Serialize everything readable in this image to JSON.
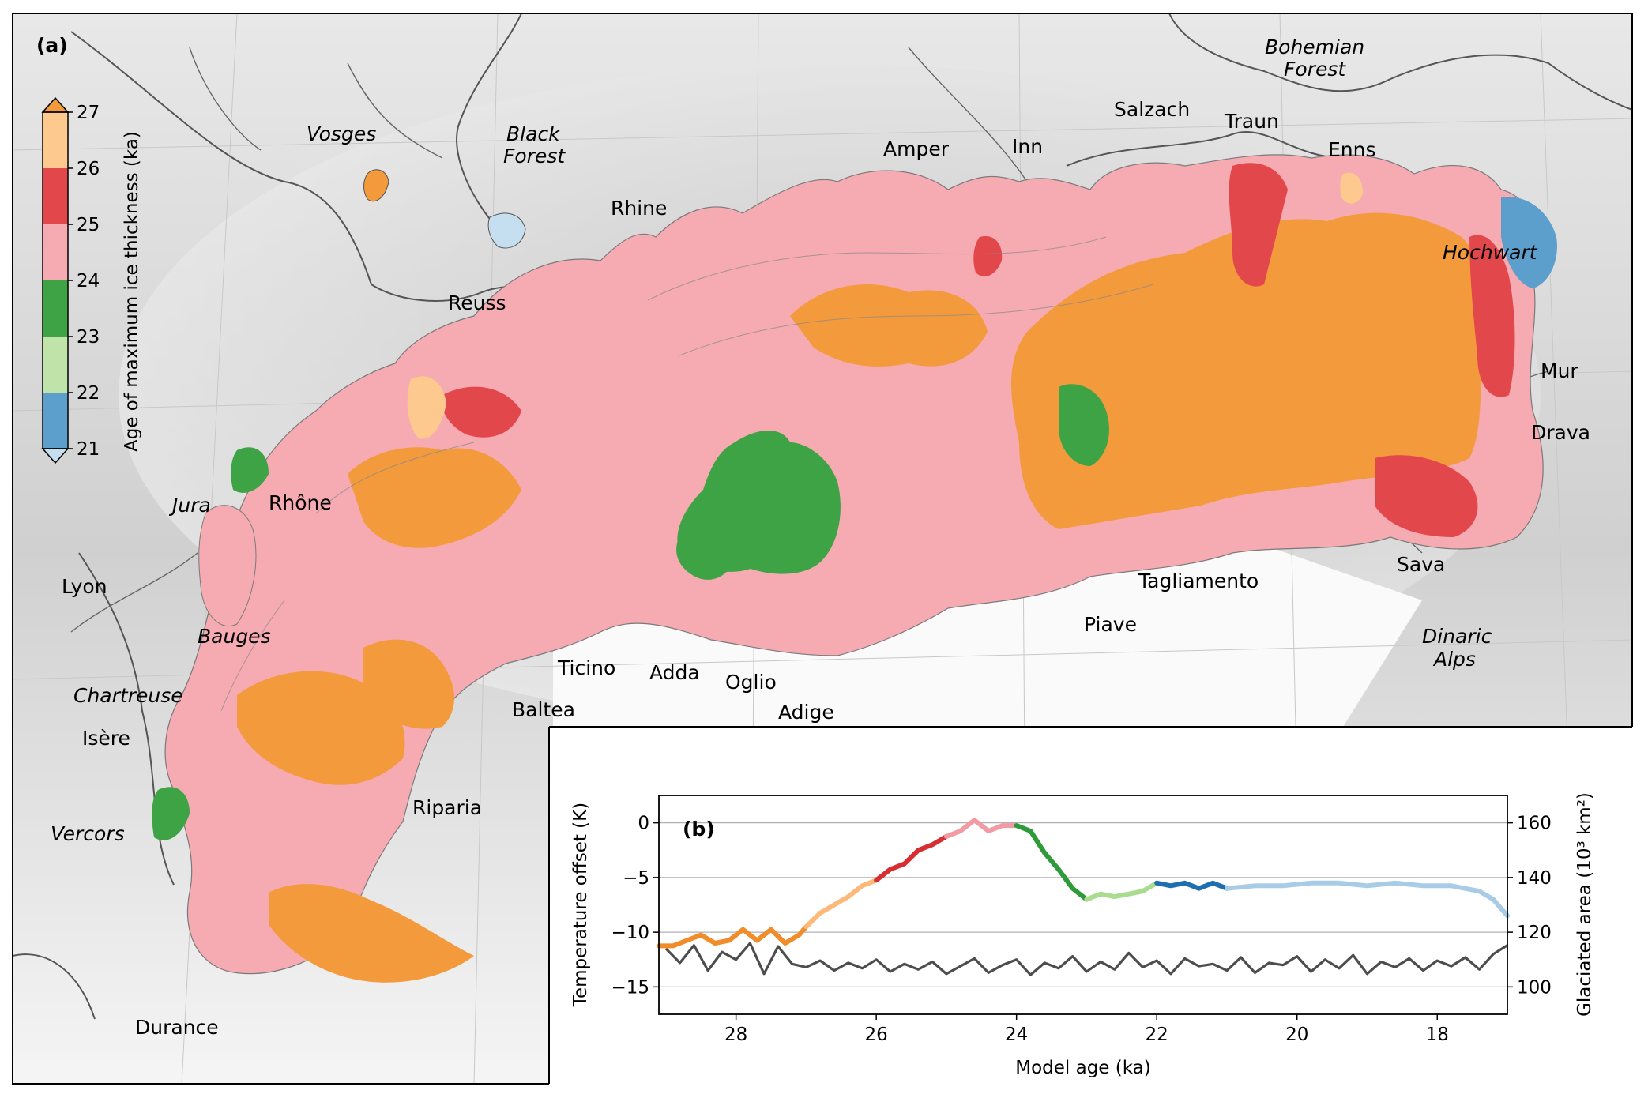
{
  "panel_a": {
    "label": "(a)",
    "colorbar": {
      "title": "Age of maximum ice thickness (ka)",
      "ticks": [
        "27",
        "26",
        "25",
        "24",
        "23",
        "22",
        "21"
      ],
      "bands": [
        {
          "from": 26,
          "to": 27,
          "color": "#fdc98f"
        },
        {
          "from": 25,
          "to": 26,
          "color": "#e2484b"
        },
        {
          "from": 24,
          "to": 25,
          "color": "#f6aab1"
        },
        {
          "from": 23,
          "to": 24,
          "color": "#3ea344"
        },
        {
          "from": 22,
          "to": 23,
          "color": "#bfe3a8"
        },
        {
          "from": 21,
          "to": 22,
          "color": "#5d9fcc"
        }
      ],
      "extend_max_color": "#f39a3c",
      "extend_min_color": "#c6dff0"
    },
    "labels": {
      "vosges": "Vosges",
      "black_forest_1": "Black",
      "black_forest_2": "Forest",
      "rhine": "Rhine",
      "reuss": "Reuss",
      "amper": "Amper",
      "inn": "Inn",
      "salzach": "Salzach",
      "traun": "Traun",
      "enns": "Enns",
      "bohemian_1": "Bohemian",
      "bohemian_2": "Forest",
      "hochwart": "Hochwart",
      "mur": "Mur",
      "drava": "Drava",
      "sava": "Sava",
      "dinaric_1": "Dinaric",
      "dinaric_2": "Alps",
      "tagliamento": "Tagliamento",
      "piave": "Piave",
      "adige": "Adige",
      "oglio": "Oglio",
      "adda": "Adda",
      "ticino": "Ticino",
      "baltea": "Baltea",
      "riparia": "Riparia",
      "jura": "Jura",
      "rhone": "Rhône",
      "lyon": "Lyon",
      "bauges": "Bauges",
      "chartreuse": "Chartreuse",
      "isere": "Isère",
      "vercors": "Vercors",
      "durance": "Durance"
    }
  },
  "chart_data": {
    "type": "line",
    "panel_label": "(b)",
    "xlabel": "Model age (ka)",
    "ylabel_left": "Temperature offset (K)",
    "ylabel_right": "Glaciated area (10³ km²)",
    "x_ticks": [
      "28",
      "26",
      "24",
      "22",
      "20",
      "18"
    ],
    "y_left_ticks": [
      "0",
      "−5",
      "−10",
      "−15"
    ],
    "y_right_ticks": [
      "160",
      "140",
      "120",
      "100"
    ],
    "xlim": [
      29.1,
      17.0
    ],
    "ylim_left": [
      -17.5,
      2.5
    ],
    "ylim_right": [
      90,
      170
    ],
    "grid": "horizontal",
    "series": [
      {
        "axis": "left",
        "color": "#4d4d4d",
        "x": [
          29.0,
          28.8,
          28.6,
          28.4,
          28.2,
          28.0,
          27.8,
          27.6,
          27.4,
          27.2,
          27.0,
          26.8,
          26.6,
          26.4,
          26.2,
          26.0,
          25.8,
          25.6,
          25.4,
          25.2,
          25.0,
          24.8,
          24.6,
          24.4,
          24.2,
          24.0,
          23.8,
          23.6,
          23.4,
          23.2,
          23.0,
          22.8,
          22.6,
          22.4,
          22.2,
          22.0,
          21.8,
          21.6,
          21.4,
          21.2,
          21.0,
          20.8,
          20.6,
          20.4,
          20.2,
          20.0,
          19.8,
          19.6,
          19.4,
          19.2,
          19.0,
          18.8,
          18.6,
          18.4,
          18.2,
          18.0,
          17.8,
          17.6,
          17.4,
          17.2,
          17.0
        ],
        "y": [
          -11.5,
          -12.8,
          -11.2,
          -13.5,
          -11.8,
          -12.5,
          -11.0,
          -13.8,
          -11.3,
          -12.9,
          -13.2,
          -12.6,
          -13.5,
          -12.8,
          -13.3,
          -12.5,
          -13.6,
          -12.9,
          -13.4,
          -12.7,
          -13.8,
          -13.1,
          -12.4,
          -13.7,
          -13.0,
          -12.5,
          -13.9,
          -12.8,
          -13.3,
          -12.2,
          -13.6,
          -12.7,
          -13.4,
          -11.9,
          -13.2,
          -12.6,
          -13.8,
          -12.4,
          -13.1,
          -12.9,
          -13.5,
          -12.3,
          -13.7,
          -12.8,
          -13.0,
          -12.2,
          -13.6,
          -12.5,
          -13.3,
          -12.1,
          -13.8,
          -12.7,
          -13.2,
          -12.4,
          -13.5,
          -12.6,
          -13.1,
          -12.3,
          -13.4,
          -12.0,
          -11.2
        ]
      },
      {
        "axis": "right",
        "note_color_by": "age of maximum ice thickness",
        "segments": [
          {
            "color": "#f08c2a",
            "x": [
              29.1,
              28.9,
              28.7,
              28.5,
              28.3,
              28.1,
              27.9,
              27.7,
              27.5,
              27.3,
              27.1,
              27.0
            ],
            "y": [
              115,
              115,
              117,
              119,
              116,
              117,
              121,
              117,
              121,
              116,
              119,
              122
            ]
          },
          {
            "color": "#fdb97a",
            "x": [
              27.0,
              26.8,
              26.6,
              26.4,
              26.2,
              26.0
            ],
            "y": [
              122,
              127,
              130,
              133,
              137,
              139
            ]
          },
          {
            "color": "#d62f33",
            "x": [
              26.0,
              25.8,
              25.6,
              25.4,
              25.2,
              25.0
            ],
            "y": [
              139,
              143,
              145,
              150,
              152,
              155
            ]
          },
          {
            "color": "#f39ba4",
            "x": [
              25.0,
              24.8,
              24.6,
              24.4,
              24.2,
              24.0
            ],
            "y": [
              155,
              157,
              161,
              157,
              159,
              159
            ]
          },
          {
            "color": "#2f9a3a",
            "x": [
              24.0,
              23.8,
              23.6,
              23.4,
              23.2,
              23.0
            ],
            "y": [
              159,
              157,
              149,
              143,
              136,
              132
            ]
          },
          {
            "color": "#a9dc8f",
            "x": [
              23.0,
              22.8,
              22.6,
              22.4,
              22.2,
              22.0
            ],
            "y": [
              132,
              134,
              133,
              134,
              135,
              138
            ]
          },
          {
            "color": "#1f6fb0",
            "x": [
              22.0,
              21.8,
              21.6,
              21.4,
              21.2,
              21.0
            ],
            "y": [
              138,
              137,
              138,
              136,
              138,
              136
            ]
          },
          {
            "color": "#a8cce6",
            "x": [
              21.0,
              20.6,
              20.2,
              19.8,
              19.4,
              19.0,
              18.6,
              18.2,
              17.8,
              17.4,
              17.2,
              17.0
            ],
            "y": [
              136,
              137,
              137,
              138,
              138,
              137,
              138,
              137,
              137,
              135,
              132,
              126
            ]
          }
        ]
      }
    ]
  }
}
